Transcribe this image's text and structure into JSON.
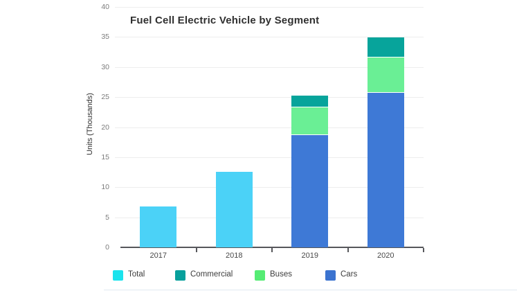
{
  "title": "Fuel Cell Electric Vehicle by Segment",
  "y_axis": {
    "label": "Units (Thousands)",
    "ticks": [
      0,
      5,
      10,
      15,
      20,
      25,
      30,
      35,
      40
    ]
  },
  "x_axis": {
    "categories": [
      "2017",
      "2018",
      "2019",
      "2020"
    ]
  },
  "legend": {
    "position": "bottom",
    "items": [
      {
        "label": "Total",
        "color": "#1be3ed"
      },
      {
        "label": "Commercial",
        "color": "#08a09c"
      },
      {
        "label": "Buses",
        "color": "#55ec74"
      },
      {
        "label": "Cars",
        "color": "#3b73d0"
      }
    ]
  },
  "chart_data": {
    "type": "bar",
    "stacked": true,
    "title": "Fuel Cell Electric Vehicle by Segment",
    "xlabel": "",
    "ylabel": "Units (Thousands)",
    "ylim": [
      0,
      40
    ],
    "grid": true,
    "legend_position": "bottom",
    "categories": [
      "2017",
      "2018",
      "2019",
      "2020"
    ],
    "series": [
      {
        "name": "Total",
        "color": "#4bd2f7",
        "values": [
          6.8,
          12.6,
          0,
          0
        ]
      },
      {
        "name": "Cars",
        "color": "#3e79d6",
        "values": [
          0,
          0,
          18.8,
          25.8
        ]
      },
      {
        "name": "Buses",
        "color": "#6aef95",
        "values": [
          0,
          0,
          4.6,
          5.9
        ]
      },
      {
        "name": "Commercial",
        "color": "#07a49b",
        "values": [
          0,
          0,
          1.8,
          3.2
        ]
      }
    ]
  }
}
